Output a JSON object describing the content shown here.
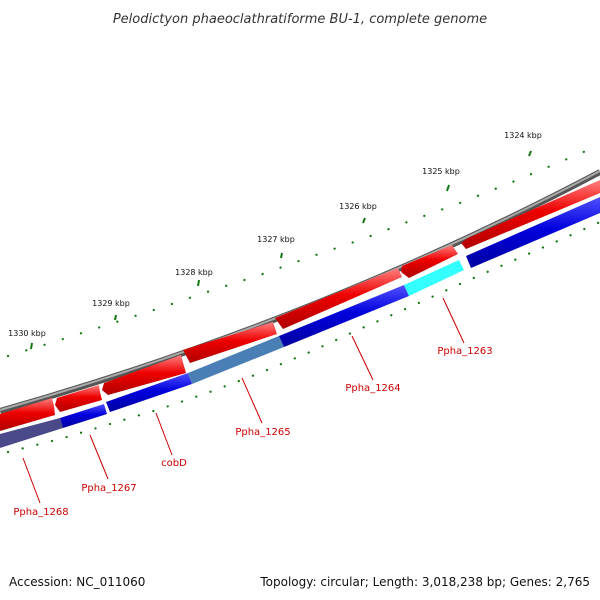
{
  "title": "Pelodictyon phaeoclathratiforme BU-1, complete genome",
  "ticks": [
    {
      "label": "1324 kbp"
    },
    {
      "label": "1325 kbp"
    },
    {
      "label": "1326 kbp"
    },
    {
      "label": "1327 kbp"
    },
    {
      "label": "1328 kbp"
    },
    {
      "label": "1329 kbp"
    },
    {
      "label": "1330 kbp"
    }
  ],
  "genes": [
    {
      "name": "Ppha_1263"
    },
    {
      "name": "Ppha_1264"
    },
    {
      "name": "Ppha_1265"
    },
    {
      "name": "cobD"
    },
    {
      "name": "Ppha_1267"
    },
    {
      "name": "Ppha_1268"
    }
  ],
  "colors": {
    "backbone": "#7a7a7a",
    "forward_strand": "#ee0000",
    "reverse_strand": "#0000dd",
    "highlight_cyan": "#33ffff",
    "highlight_steel": "#4a7fb5",
    "highlight_slate": "#4a4a8a",
    "tick_mark": "#006600",
    "gene_label": "#cc0000"
  },
  "footer": {
    "accession": "Accession: NC_011060",
    "topology": "Topology: circular; Length: 3,018,238 bp; Genes: 2,765"
  }
}
